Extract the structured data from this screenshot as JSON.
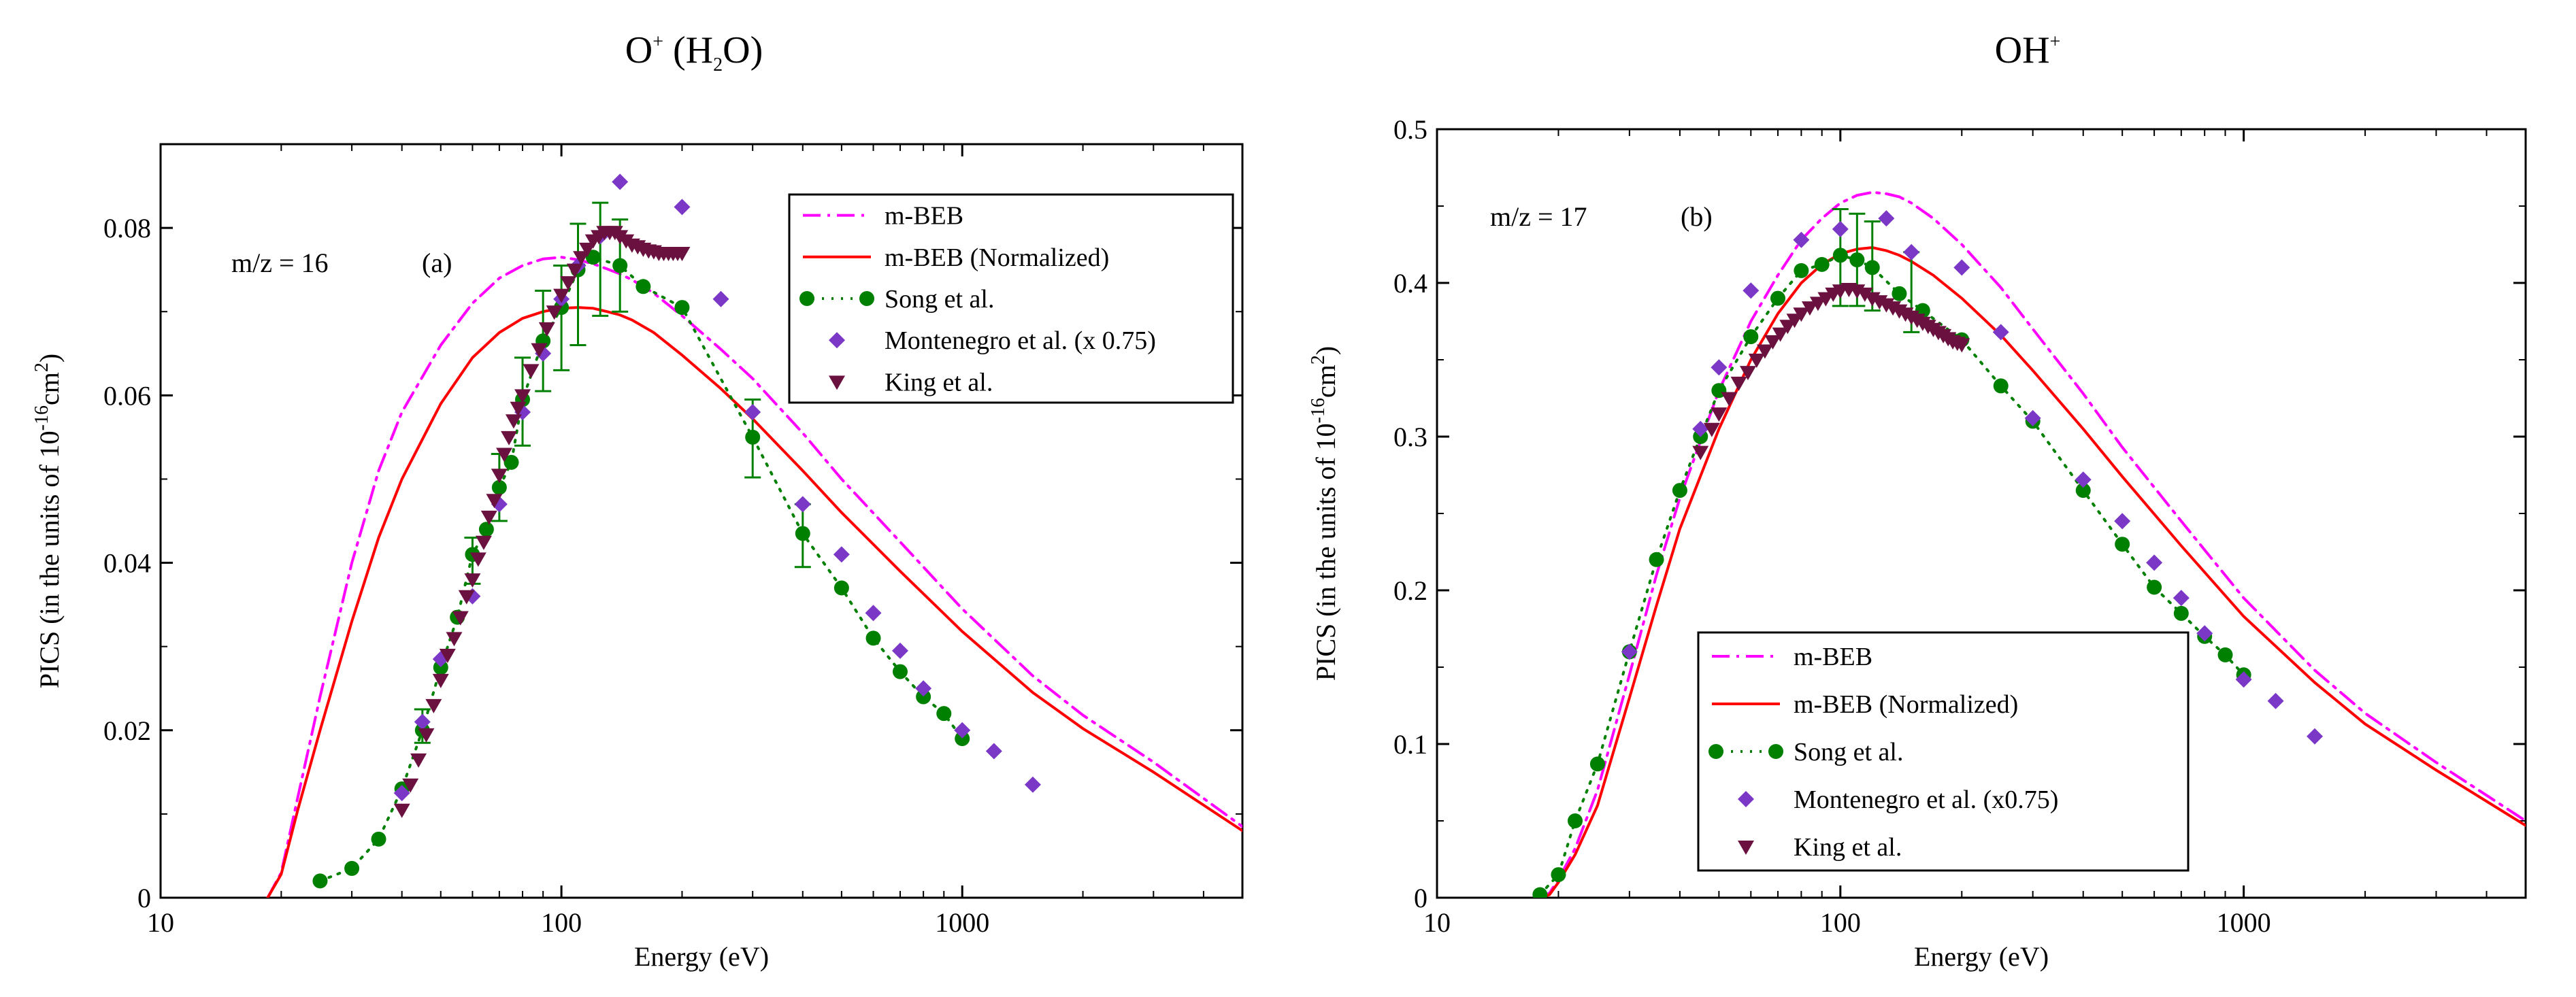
{
  "chart_data": [
    {
      "type": "line",
      "title": "O+ (H2O)",
      "title_parts": {
        "species": "O",
        "charge": "+",
        "parent": "(H",
        "sub": "2",
        "parent_end": "O)"
      },
      "panel_label": "(a)",
      "mz_label": "m/z = 16",
      "xlabel": "Energy (eV)",
      "ylabel": {
        "prefix": "PICS (in the units of 10",
        "exp": "-16",
        "unit": "cm",
        "unit_exp": "2",
        "suffix": ")"
      },
      "xscale": "log",
      "xlim": [
        10,
        5000
      ],
      "ylim": [
        0,
        0.09
      ],
      "xticks": [
        10,
        100,
        1000
      ],
      "xtick_labels": [
        "10",
        "100",
        "1000"
      ],
      "yticks": [
        0,
        0.02,
        0.04,
        0.06,
        0.08
      ],
      "ytick_labels": [
        "0",
        "0.02",
        "0.04",
        "0.06",
        "0.08"
      ],
      "legend_position": "top-right",
      "series": [
        {
          "name": "m-BEB",
          "kind": "line",
          "color": "#ff00ff",
          "dash": "dashdot",
          "x": [
            18.5,
            20,
            22,
            25,
            30,
            35,
            40,
            50,
            60,
            70,
            80,
            90,
            100,
            110,
            120,
            130,
            140,
            150,
            170,
            200,
            250,
            300,
            400,
            500,
            700,
            1000,
            1500,
            2000,
            3000,
            5000
          ],
          "y": [
            0,
            0.003,
            0.012,
            0.024,
            0.04,
            0.051,
            0.058,
            0.066,
            0.071,
            0.074,
            0.0755,
            0.0763,
            0.0765,
            0.0762,
            0.0757,
            0.0751,
            0.0745,
            0.0738,
            0.0722,
            0.0695,
            0.0655,
            0.062,
            0.0555,
            0.05,
            0.0425,
            0.0345,
            0.0265,
            0.0218,
            0.0162,
            0.0085
          ]
        },
        {
          "name": "m-BEB (Normalized)",
          "kind": "line",
          "color": "#ff0000",
          "dash": "solid",
          "x": [
            18.5,
            20,
            22,
            25,
            30,
            35,
            40,
            50,
            60,
            70,
            80,
            90,
            100,
            110,
            120,
            130,
            140,
            150,
            170,
            200,
            250,
            300,
            400,
            500,
            700,
            1000,
            1500,
            2000,
            3000,
            5000
          ],
          "y": [
            0,
            0.0028,
            0.0105,
            0.02,
            0.033,
            0.043,
            0.05,
            0.059,
            0.0645,
            0.0675,
            0.0692,
            0.07,
            0.0704,
            0.0705,
            0.0704,
            0.07,
            0.0696,
            0.069,
            0.0675,
            0.0648,
            0.0608,
            0.0572,
            0.051,
            0.046,
            0.039,
            0.0318,
            0.0245,
            0.0202,
            0.015,
            0.008
          ]
        },
        {
          "name": "Song et al.",
          "kind": "line-marker",
          "color": "#008000",
          "dash": "dotted",
          "marker": "circle",
          "x": [
            25,
            30,
            35,
            40,
            45,
            50,
            55,
            60,
            65,
            70,
            75,
            80,
            90,
            100,
            110,
            120,
            140,
            160,
            200,
            300,
            400,
            500,
            600,
            700,
            800,
            900,
            1000
          ],
          "y": [
            0.002,
            0.0035,
            0.007,
            0.013,
            0.02,
            0.0275,
            0.0335,
            0.041,
            0.044,
            0.049,
            0.052,
            0.0595,
            0.0665,
            0.0705,
            0.075,
            0.0765,
            0.0755,
            0.073,
            0.0705,
            0.055,
            0.0435,
            0.037,
            0.031,
            0.027,
            0.024,
            0.022,
            0.019
          ],
          "err_x": [
            45,
            60,
            70,
            80,
            90,
            100,
            110,
            125,
            140,
            300,
            400
          ],
          "err_lo": [
            0.0185,
            0.0375,
            0.045,
            0.054,
            0.0605,
            0.063,
            0.066,
            0.0695,
            0.07,
            0.0502,
            0.0395
          ],
          "err_hi": [
            0.0225,
            0.043,
            0.053,
            0.0645,
            0.0725,
            0.0755,
            0.0805,
            0.083,
            0.081,
            0.0595,
            0.047
          ]
        },
        {
          "name": "Montenegro et al. (x 0.75)",
          "kind": "marker",
          "color": "#7b38c7",
          "marker": "diamond",
          "x": [
            40,
            45,
            50,
            60,
            70,
            80,
            90,
            100,
            110,
            125,
            140,
            200,
            250,
            300,
            400,
            500,
            600,
            700,
            800,
            1000,
            1200,
            1500
          ],
          "y": [
            0.0125,
            0.021,
            0.0285,
            0.036,
            0.047,
            0.058,
            0.065,
            0.0715,
            0.0755,
            0.079,
            0.0855,
            0.0825,
            0.0715,
            0.058,
            0.047,
            0.041,
            0.034,
            0.0295,
            0.025,
            0.02,
            0.0175,
            0.0135
          ]
        },
        {
          "name": "King et al.",
          "kind": "marker",
          "color": "#6b1140",
          "marker": "triangle-down",
          "x": [
            40,
            42,
            44,
            46,
            48,
            50,
            52,
            54,
            56,
            58,
            60,
            62,
            64,
            66,
            68,
            70,
            72,
            74,
            76,
            78,
            80,
            84,
            88,
            92,
            96,
            100,
            104,
            108,
            112,
            116,
            120,
            124,
            128,
            132,
            136,
            140,
            145,
            150,
            155,
            160,
            165,
            170,
            175,
            180,
            185,
            190,
            195,
            200
          ],
          "y": [
            0.0105,
            0.0135,
            0.0165,
            0.0195,
            0.023,
            0.026,
            0.029,
            0.031,
            0.0335,
            0.036,
            0.038,
            0.0405,
            0.0425,
            0.0455,
            0.0475,
            0.0505,
            0.053,
            0.055,
            0.057,
            0.0585,
            0.06,
            0.063,
            0.0655,
            0.068,
            0.07,
            0.072,
            0.0735,
            0.075,
            0.0765,
            0.0775,
            0.0785,
            0.079,
            0.0795,
            0.0795,
            0.0795,
            0.079,
            0.0785,
            0.078,
            0.0778,
            0.0775,
            0.0773,
            0.0772,
            0.077,
            0.077,
            0.077,
            0.077,
            0.077,
            0.077
          ]
        }
      ]
    },
    {
      "type": "line",
      "title": "OH+",
      "title_parts": {
        "species": "OH",
        "charge": "+"
      },
      "panel_label": "(b)",
      "mz_label": "m/z = 17",
      "xlabel": "Energy (eV)",
      "ylabel": {
        "prefix": "PICS (in the units of 10",
        "exp": "-16",
        "unit": "cm",
        "unit_exp": "2",
        "suffix": ")"
      },
      "xscale": "log",
      "xlim": [
        10,
        5000
      ],
      "ylim": [
        0,
        0.5
      ],
      "xticks": [
        10,
        100,
        1000
      ],
      "xtick_labels": [
        "10",
        "100",
        "1000"
      ],
      "yticks": [
        0,
        0.1,
        0.2,
        0.3,
        0.4,
        0.5
      ],
      "ytick_labels": [
        "0",
        "0.1",
        "0.2",
        "0.3",
        "0.4",
        "0.5"
      ],
      "legend_position": "bottom-left",
      "series": [
        {
          "name": "m-BEB",
          "kind": "line",
          "color": "#ff00ff",
          "dash": "dashdot",
          "x": [
            18,
            19,
            20,
            22,
            25,
            30,
            35,
            40,
            50,
            60,
            70,
            80,
            90,
            100,
            110,
            120,
            130,
            140,
            150,
            170,
            200,
            250,
            300,
            400,
            500,
            700,
            1000,
            1500,
            2000,
            3000,
            5000
          ],
          "y": [
            0,
            0.003,
            0.012,
            0.032,
            0.07,
            0.145,
            0.21,
            0.26,
            0.33,
            0.375,
            0.405,
            0.428,
            0.442,
            0.452,
            0.457,
            0.459,
            0.458,
            0.456,
            0.452,
            0.442,
            0.425,
            0.397,
            0.37,
            0.328,
            0.293,
            0.245,
            0.195,
            0.148,
            0.12,
            0.088,
            0.05
          ]
        },
        {
          "name": "m-BEB (Normalized)",
          "kind": "line",
          "color": "#ff0000",
          "dash": "solid",
          "x": [
            18,
            19,
            20,
            22,
            25,
            30,
            35,
            40,
            50,
            60,
            70,
            80,
            90,
            100,
            110,
            120,
            130,
            140,
            150,
            170,
            200,
            250,
            300,
            400,
            500,
            700,
            1000,
            1500,
            2000,
            3000,
            5000
          ],
          "y": [
            0,
            0.002,
            0.01,
            0.028,
            0.06,
            0.13,
            0.19,
            0.24,
            0.305,
            0.35,
            0.38,
            0.4,
            0.412,
            0.419,
            0.422,
            0.423,
            0.421,
            0.418,
            0.414,
            0.405,
            0.39,
            0.366,
            0.343,
            0.305,
            0.274,
            0.229,
            0.183,
            0.14,
            0.113,
            0.083,
            0.047
          ]
        },
        {
          "name": "Song et al.",
          "kind": "line-marker",
          "color": "#008000",
          "dash": "dotted",
          "marker": "circle",
          "x": [
            18,
            20,
            22,
            25,
            30,
            35,
            40,
            45,
            50,
            60,
            70,
            80,
            90,
            100,
            110,
            120,
            140,
            160,
            200,
            250,
            300,
            400,
            500,
            600,
            700,
            800,
            900,
            1000
          ],
          "y": [
            0.002,
            0.015,
            0.05,
            0.087,
            0.16,
            0.22,
            0.265,
            0.3,
            0.33,
            0.365,
            0.39,
            0.408,
            0.412,
            0.418,
            0.415,
            0.41,
            0.393,
            0.382,
            0.363,
            0.333,
            0.31,
            0.265,
            0.23,
            0.202,
            0.185,
            0.17,
            0.158,
            0.145
          ],
          "err_x": [
            100,
            110,
            120,
            150
          ],
          "err_lo": [
            0.385,
            0.385,
            0.382,
            0.368
          ],
          "err_hi": [
            0.448,
            0.445,
            0.44,
            0.42
          ]
        },
        {
          "name": "Montenegro et al. (x0.75)",
          "kind": "marker",
          "color": "#7b38c7",
          "marker": "diamond",
          "x": [
            30,
            45,
            50,
            60,
            80,
            100,
            130,
            150,
            200,
            250,
            300,
            400,
            500,
            600,
            700,
            800,
            1000,
            1200,
            1500
          ],
          "y": [
            0.16,
            0.305,
            0.345,
            0.395,
            0.428,
            0.435,
            0.442,
            0.42,
            0.41,
            0.368,
            0.312,
            0.272,
            0.245,
            0.218,
            0.195,
            0.172,
            0.142,
            0.128,
            0.105
          ]
        },
        {
          "name": "King et al.",
          "kind": "marker",
          "color": "#6b1140",
          "marker": "triangle-down",
          "x": [
            45,
            48,
            50,
            53,
            56,
            59,
            62,
            65,
            68,
            71,
            74,
            77,
            80,
            84,
            88,
            92,
            96,
            100,
            105,
            110,
            115,
            120,
            125,
            130,
            135,
            140,
            145,
            150,
            155,
            160,
            165,
            170,
            175,
            180,
            185,
            190,
            195,
            200
          ],
          "y": [
            0.29,
            0.305,
            0.315,
            0.325,
            0.335,
            0.342,
            0.35,
            0.356,
            0.362,
            0.367,
            0.372,
            0.376,
            0.38,
            0.384,
            0.387,
            0.39,
            0.393,
            0.395,
            0.396,
            0.395,
            0.393,
            0.39,
            0.388,
            0.386,
            0.384,
            0.382,
            0.38,
            0.378,
            0.376,
            0.374,
            0.372,
            0.37,
            0.368,
            0.366,
            0.364,
            0.362,
            0.361,
            0.36
          ]
        }
      ]
    }
  ]
}
